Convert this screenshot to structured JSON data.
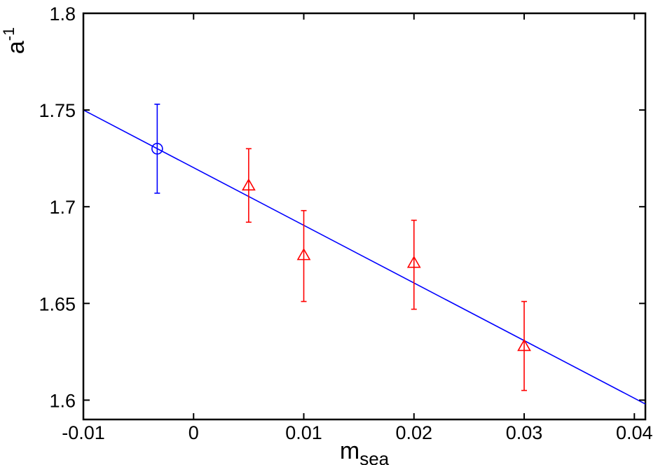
{
  "chart_data": {
    "type": "scatter",
    "title": "",
    "xlabel": "m",
    "xlabel_subscript": "sea",
    "ylabel": "a",
    "ylabel_superscript": "-1",
    "xlim": [
      -0.01,
      0.041
    ],
    "ylim": [
      1.59,
      1.8
    ],
    "xticks": [
      -0.01,
      0,
      0.01,
      0.02,
      0.03,
      0.04
    ],
    "xtick_labels": [
      "-0.01",
      "0",
      "0.01",
      "0.02",
      "0.03",
      "0.04"
    ],
    "yticks": [
      1.6,
      1.65,
      1.7,
      1.75,
      1.8
    ],
    "ytick_labels": [
      "1.6",
      "1.65",
      "1.7",
      "1.75",
      "1.8"
    ],
    "grid": false,
    "series": [
      {
        "marker": "circle",
        "color": "#0000ff",
        "points": [
          {
            "x": -0.0033,
            "y": 1.73,
            "err_low": 1.707,
            "err_high": 1.753
          }
        ]
      },
      {
        "marker": "triangle",
        "color": "#ff0000",
        "points": [
          {
            "x": 0.005,
            "y": 1.711,
            "err_low": 1.692,
            "err_high": 1.73
          },
          {
            "x": 0.01,
            "y": 1.675,
            "err_low": 1.651,
            "err_high": 1.698
          },
          {
            "x": 0.02,
            "y": 1.671,
            "err_low": 1.647,
            "err_high": 1.693
          },
          {
            "x": 0.03,
            "y": 1.628,
            "err_low": 1.605,
            "err_high": 1.651
          }
        ]
      }
    ],
    "fit_line": {
      "color": "#0000ff",
      "x": [
        -0.01,
        0.041
      ],
      "y": [
        1.75,
        1.598
      ]
    }
  }
}
